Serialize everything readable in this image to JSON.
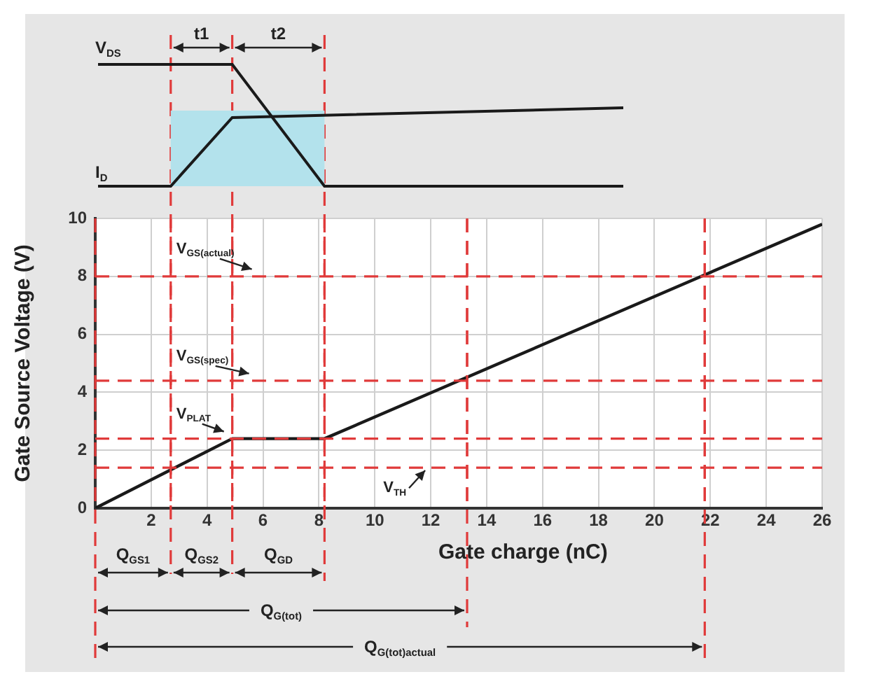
{
  "chart_data": {
    "type": "line",
    "xlabel": "Gate charge (nC)",
    "ylabel": "Gate Source Voltage (V)",
    "x": [
      0,
      4.9,
      8.2,
      26
    ],
    "series": [
      {
        "color": "#1a1a1a",
        "values": [
          0,
          2.4,
          2.4,
          9.8
        ]
      }
    ],
    "xlim": [
      0,
      26
    ],
    "xticks": [
      {
        "value": 0,
        "label": null
      },
      2,
      4,
      6,
      8,
      10,
      12,
      14,
      16,
      18,
      20,
      22,
      24,
      26
    ],
    "ylim": [
      0,
      10
    ],
    "yticks": [
      0,
      2,
      4,
      6,
      8,
      10
    ],
    "grid": true,
    "marker": "none",
    "line_style": "solid",
    "ref_lines": [
      {
        "axis": "y",
        "value": 8,
        "label": "V$_{GS(actual)}$",
        "color": "#e03a3a",
        "line_style": "dashed"
      },
      {
        "axis": "y",
        "value": 4.4,
        "label": "V$_{GS(spec)}$",
        "color": "#e03a3a",
        "line_style": "dashed"
      },
      {
        "axis": "y",
        "value": 2.4,
        "label": "V$_{PLAT}$",
        "color": "#e03a3a",
        "line_style": "dashed"
      },
      {
        "axis": "y",
        "value": 1.4,
        "label": "V$_{TH}$",
        "color": "#e03a3a",
        "line_style": "dashed"
      },
      {
        "axis": "x",
        "value": 0,
        "color": "#e03a3a",
        "line_style": "dashed"
      },
      {
        "axis": "x",
        "value": 2.7,
        "color": "#e03a3a",
        "line_style": "dashed"
      },
      {
        "axis": "x",
        "value": 4.9,
        "color": "#e03a3a",
        "line_style": "dashed"
      },
      {
        "axis": "x",
        "value": 8.2,
        "color": "#e03a3a",
        "line_style": "dashed"
      },
      {
        "axis": "x",
        "value": 13.3,
        "color": "#e03a3a",
        "line_style": "dashed"
      },
      {
        "axis": "x",
        "value": 21.8,
        "color": "#e03a3a",
        "line_style": "dashed"
      }
    ],
    "annotations": [
      "V$_{DS}$",
      "I$_{D}$",
      "t1",
      "t2",
      "Q$_{GS1}$",
      "Q$_{GS2}$",
      "Q$_{GD}$",
      "Q$_{G(tot)}$",
      "Q$_{G(tot)actual}$"
    ]
  }
}
